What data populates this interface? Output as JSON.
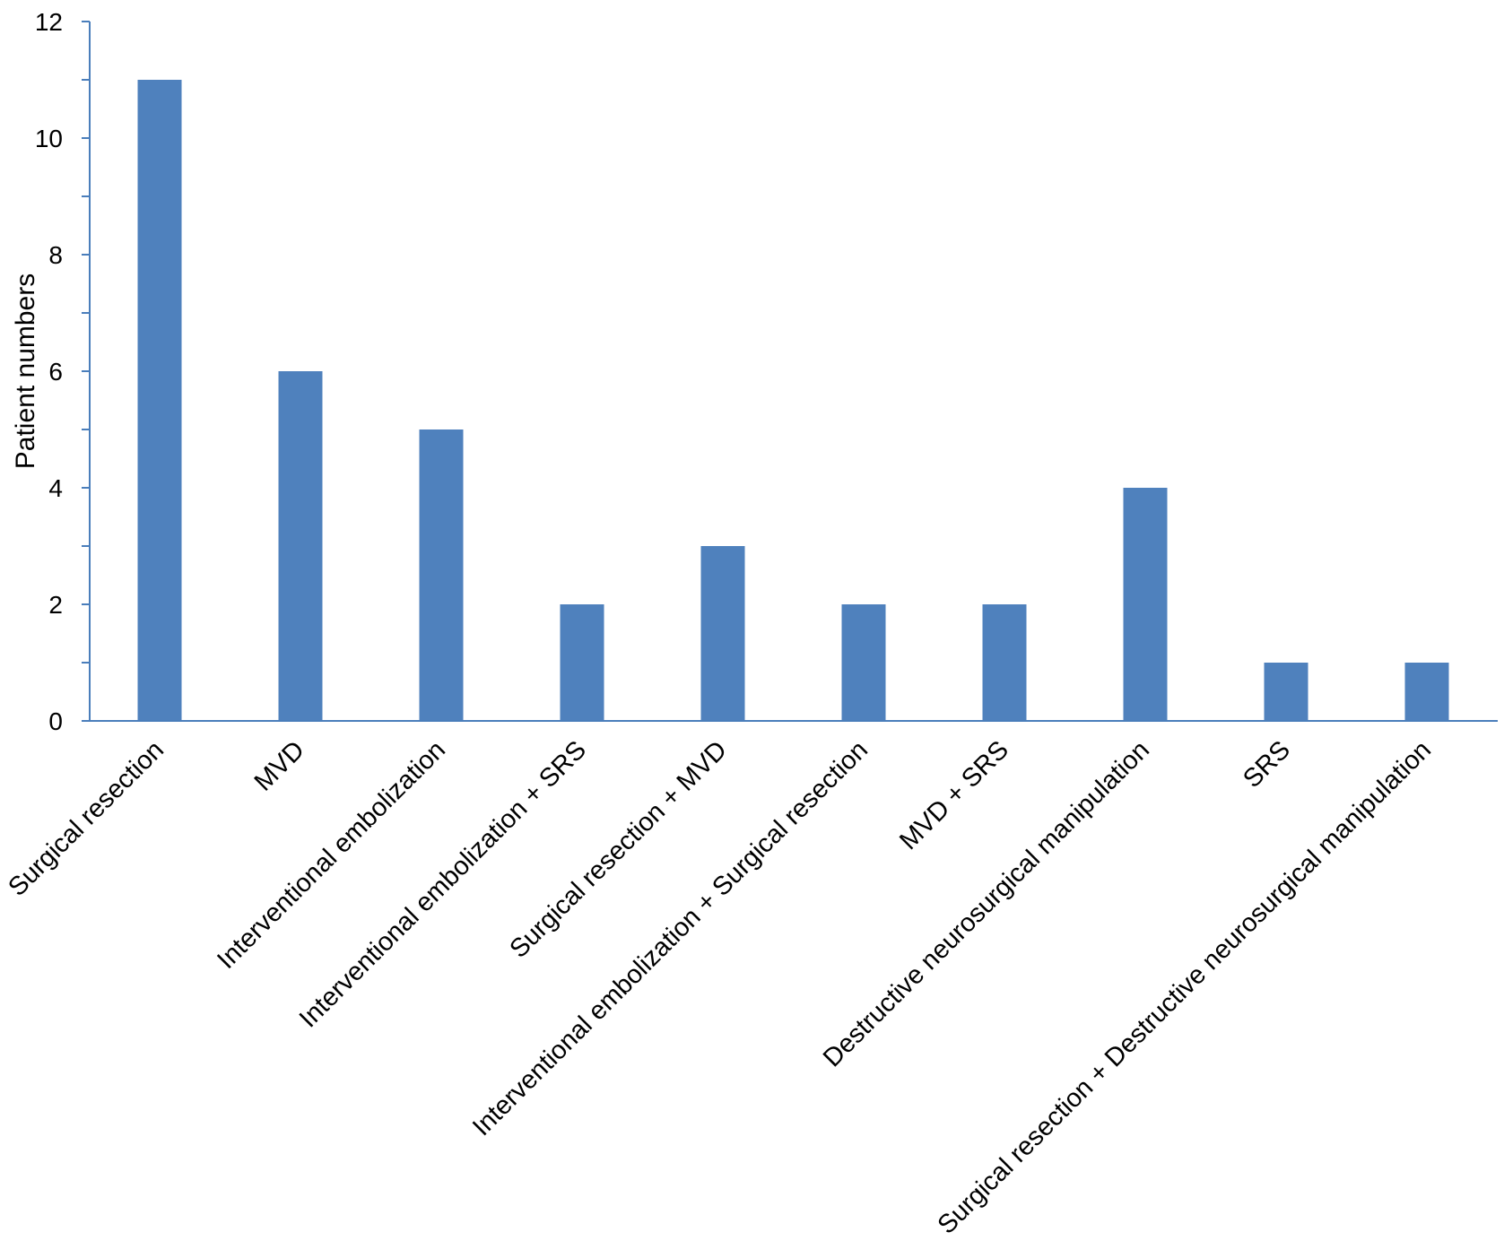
{
  "chart_data": {
    "type": "bar",
    "title": "",
    "xlabel": "",
    "ylabel": "Patient  numbers",
    "ylim": [
      0,
      12
    ],
    "major_ticks": [
      0,
      2,
      4,
      6,
      8,
      10,
      12
    ],
    "minor_tick_step": 1,
    "grid": false,
    "legend": "none",
    "bar_color": "#4F81BD",
    "axis_color": "#4A7EBB",
    "categories": [
      "Surgical resection",
      "MVD",
      "Interventional embolization",
      "Interventional embolization + SRS",
      "Surgical resection + MVD",
      "Interventional embolization + Surgical resection",
      "MVD + SRS",
      "Destructive neurosurgical manipulation",
      "SRS",
      "Surgical resection + Destructive neurosurgical manipulation"
    ],
    "values": [
      11,
      6,
      5,
      2,
      3,
      2,
      2,
      4,
      1,
      1
    ]
  }
}
